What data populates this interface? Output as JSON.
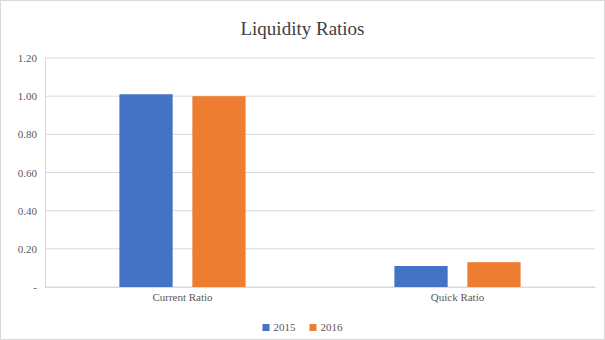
{
  "chart_data": {
    "type": "bar",
    "title": "Liquidity Ratios",
    "categories": [
      "Current Ratio",
      "Quick Ratio"
    ],
    "series": [
      {
        "name": "2015",
        "color": "#4472c4",
        "values": [
          1.01,
          0.11
        ]
      },
      {
        "name": "2016",
        "color": "#ed7d31",
        "values": [
          1.0,
          0.13
        ]
      }
    ],
    "ylim": [
      0,
      1.2
    ],
    "yticks": [
      {
        "value": 0,
        "label": "-"
      },
      {
        "value": 0.2,
        "label": "0.20"
      },
      {
        "value": 0.4,
        "label": "0.40"
      },
      {
        "value": 0.6,
        "label": "0.60"
      },
      {
        "value": 0.8,
        "label": "0.80"
      },
      {
        "value": 1.0,
        "label": "1.00"
      },
      {
        "value": 1.2,
        "label": "1.20"
      }
    ],
    "grid": true,
    "legend": "bottom"
  }
}
